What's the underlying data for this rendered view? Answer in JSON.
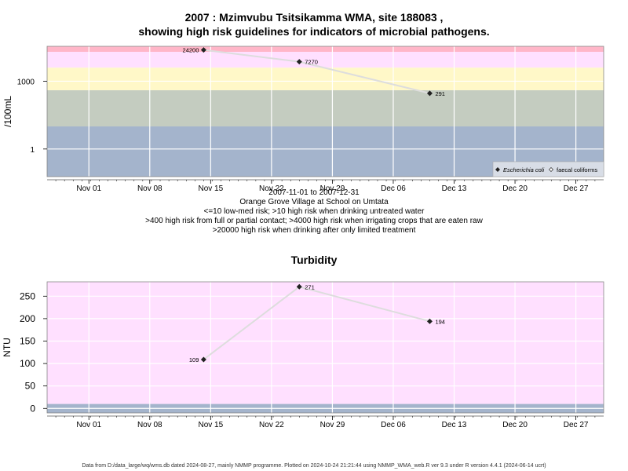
{
  "header": {
    "title_line1": "2007 : Mzimvubu Tsitsikamma WMA, site 188083 ,",
    "title_line2": "showing high risk guidelines for indicators of microbial pathogens."
  },
  "subtitle": {
    "range": "2007-11-01 to 2007-12-31",
    "site": "Orange Grove Village at School on Umtata",
    "rule1": "<=10 low-med risk; >10 high risk when drinking untreated water",
    "rule2": ">400 high risk from full or partial contact; >4000 high risk when irrigating crops that are eaten raw",
    "rule3": ">20000 high risk when drinking after only limited treatment"
  },
  "turbidity_title": "Turbidity",
  "footer": "Data from D:/data_large/wq/wms.db dated 2024-08-27, mainly NMMP programme. Plotted on 2024-10-24 21:21:44 using NMMP_WMA_web.R ver 9.3 under R version 4.4.1 (2024-06-14 ucrt)",
  "colors": {
    "pink_band": "#ffe0ff",
    "red_band": "#ffb6c8",
    "yellow_band": "#fff8c8",
    "green_band": "#c4ccc0",
    "blue_band": "#a4b4cc",
    "line": "#dddddd",
    "marker": "#222222"
  },
  "chart_data": [
    {
      "type": "line",
      "title": "",
      "ylabel": "/100mL",
      "yscale": "log",
      "x_ticks": [
        "Nov 01",
        "Nov 08",
        "Nov 15",
        "Nov 22",
        "Nov 29",
        "Dec 06",
        "Dec 13",
        "Dec 20",
        "Dec 27"
      ],
      "y_ticks": [
        1,
        1000
      ],
      "xlim": [
        "2007-10-29",
        "2008-01-01"
      ],
      "ylim": [
        0.06,
        35000
      ],
      "risk_bands": [
        {
          "from": 0.06,
          "to": 10,
          "color": "#a4b4cc"
        },
        {
          "from": 10,
          "to": 400,
          "color": "#c4ccc0"
        },
        {
          "from": 400,
          "to": 4000,
          "color": "#fff8c8"
        },
        {
          "from": 4000,
          "to": 20000,
          "color": "#ffe0ff"
        },
        {
          "from": 20000,
          "to": 35000,
          "color": "#ffb6c8"
        }
      ],
      "legend": {
        "placement": "bottom-right",
        "entries": [
          {
            "label": "Escherichia coli",
            "marker": "filled-diamond"
          },
          {
            "label": "faecal coliforms",
            "marker": "open-diamond"
          }
        ]
      },
      "series": [
        {
          "name": "Escherichia coli",
          "points": [
            {
              "x": "2007-11-16",
              "y": 24200,
              "label": "24200"
            },
            {
              "x": "2007-11-27",
              "y": 7270,
              "label": "7270"
            },
            {
              "x": "2007-12-12",
              "y": 291,
              "label": "291"
            }
          ]
        }
      ]
    },
    {
      "type": "line",
      "title": "Turbidity",
      "ylabel": "NTU",
      "x_ticks": [
        "Nov 01",
        "Nov 08",
        "Nov 15",
        "Nov 22",
        "Nov 29",
        "Dec 06",
        "Dec 13",
        "Dec 20",
        "Dec 27"
      ],
      "y_ticks": [
        0,
        50,
        100,
        150,
        200,
        250
      ],
      "xlim": [
        "2007-10-29",
        "2008-01-01"
      ],
      "ylim": [
        -10,
        282
      ],
      "risk_bands": [
        {
          "from": -10,
          "to": 10,
          "color": "#a4b4cc"
        },
        {
          "from": 10,
          "to": 282,
          "color": "#ffe0ff"
        }
      ],
      "series": [
        {
          "points": [
            {
              "x": "2007-11-16",
              "y": 109,
              "label": "109"
            },
            {
              "x": "2007-11-27",
              "y": 271,
              "label": "271"
            },
            {
              "x": "2007-12-12",
              "y": 194,
              "label": "194"
            }
          ]
        }
      ]
    }
  ]
}
